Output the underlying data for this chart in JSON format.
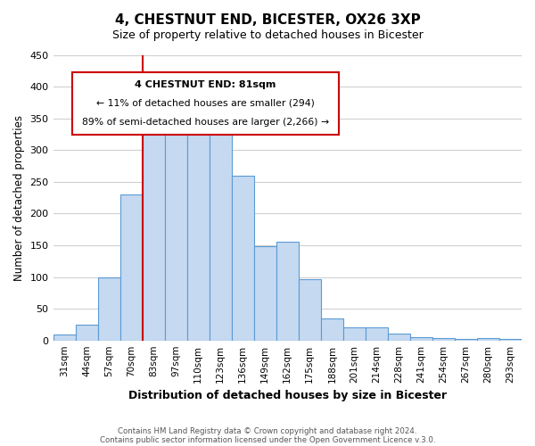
{
  "title": "4, CHESTNUT END, BICESTER, OX26 3XP",
  "subtitle": "Size of property relative to detached houses in Bicester",
  "xlabel": "Distribution of detached houses by size in Bicester",
  "ylabel": "Number of detached properties",
  "bar_labels": [
    "31sqm",
    "44sqm",
    "57sqm",
    "70sqm",
    "83sqm",
    "97sqm",
    "110sqm",
    "123sqm",
    "136sqm",
    "149sqm",
    "162sqm",
    "175sqm",
    "188sqm",
    "201sqm",
    "214sqm",
    "228sqm",
    "241sqm",
    "254sqm",
    "267sqm",
    "280sqm",
    "293sqm"
  ],
  "bar_values": [
    10,
    25,
    100,
    230,
    365,
    370,
    375,
    358,
    260,
    148,
    155,
    96,
    34,
    21,
    21,
    11,
    5,
    4,
    2,
    4,
    3
  ],
  "bar_color": "#c5d9f0",
  "bar_edge_color": "#5b9bd5",
  "highlight_bar_index": 4,
  "highlight_edge_color": "#cc0000",
  "ylim": [
    0,
    450
  ],
  "yticks": [
    0,
    50,
    100,
    150,
    200,
    250,
    300,
    350,
    400,
    450
  ],
  "annotation_title": "4 CHESTNUT END: 81sqm",
  "annotation_line1": "← 11% of detached houses are smaller (294)",
  "annotation_line2": "89% of semi-detached houses are larger (2,266) →",
  "annotation_box_color": "#ffffff",
  "annotation_box_edge_color": "#cc0000",
  "footer_line1": "Contains HM Land Registry data © Crown copyright and database right 2024.",
  "footer_line2": "Contains public sector information licensed under the Open Government Licence v.3.0.",
  "background_color": "#ffffff",
  "grid_color": "#d0d0d0"
}
